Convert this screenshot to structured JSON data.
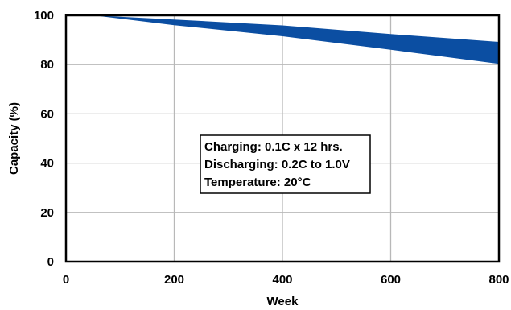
{
  "chart_data": {
    "type": "area",
    "title": "",
    "xlabel": "Week",
    "ylabel": "Capacity (%)",
    "xlim": [
      0,
      800
    ],
    "ylim": [
      0,
      100
    ],
    "xticks": [
      0,
      200,
      400,
      600,
      800
    ],
    "yticks": [
      0,
      20,
      40,
      60,
      80,
      100
    ],
    "grid": true,
    "band": {
      "x": [
        0,
        50,
        200,
        400,
        600,
        800
      ],
      "upper": [
        100,
        100,
        98.3,
        95.9,
        92.4,
        89.2
      ],
      "lower": [
        100,
        100,
        96.0,
        91.5,
        86.0,
        80.3
      ]
    },
    "color": "#0b4ea2",
    "annotation": [
      "Charging: 0.1C x 12 hrs.",
      "Discharging: 0.2C to 1.0V",
      "Temperature: 20°C"
    ]
  }
}
